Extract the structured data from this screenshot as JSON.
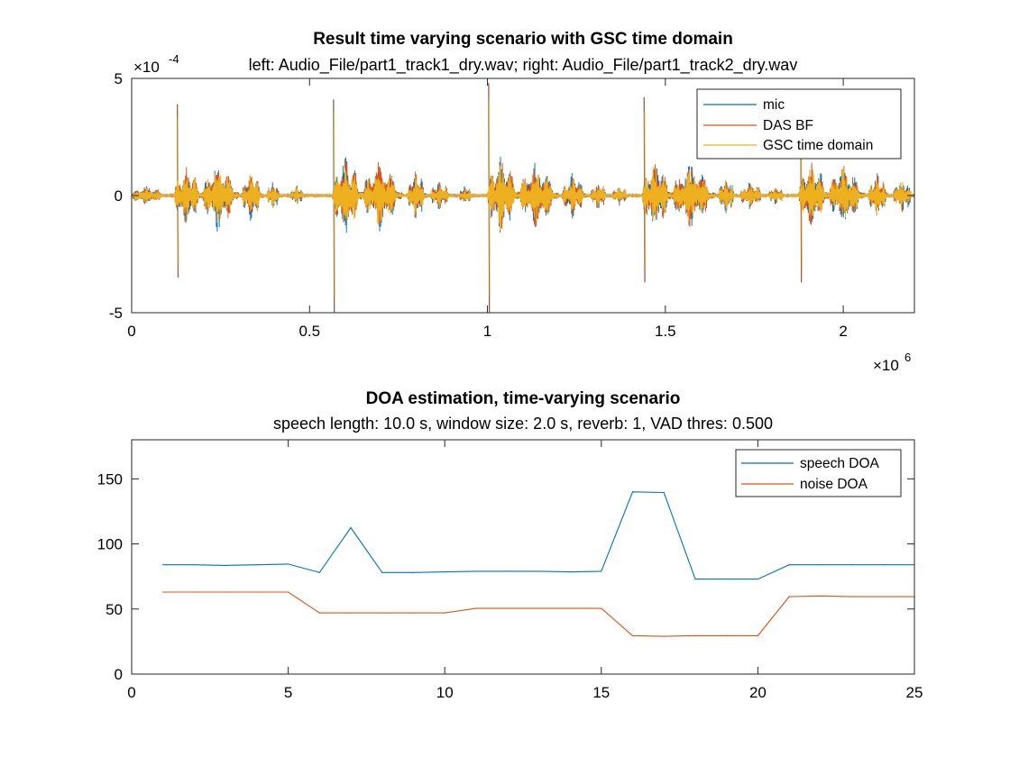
{
  "chart_data": [
    {
      "type": "line",
      "title": "Result time varying scenario with GSC time domain",
      "subtitle": "left: Audio_File/part1_track1_dry.wav; right: Audio_File/part1_track2_dry.wav",
      "xlabel": "",
      "ylabel": "",
      "xlim": [
        0,
        2200000
      ],
      "ylim": [
        -0.0005,
        0.0005
      ],
      "x_ticks": [
        "0",
        "0.5",
        "1",
        "1.5",
        "2"
      ],
      "x_tick_values": [
        0,
        500000,
        1000000,
        1500000,
        2000000
      ],
      "x_exponent": {
        "base": "×10",
        "power": "6"
      },
      "y_ticks": [
        "-5",
        "0",
        "5"
      ],
      "y_tick_values": [
        -0.0005,
        0,
        0.0005
      ],
      "y_exponent": {
        "base": "×10",
        "power": "-4"
      },
      "grid": false,
      "legend_position": "top-right",
      "series": [
        {
          "name": "mic",
          "color": "#0072bd"
        },
        {
          "name": "DAS BF",
          "color": "#d95319"
        },
        {
          "name": "GSC time domain",
          "color": "#edb120"
        }
      ],
      "speech_bursts": [
        {
          "start": 0,
          "end": 100000,
          "level": 4e-05
        },
        {
          "start": 120000,
          "end": 200000,
          "level": 0.00012,
          "peak_x": 128000,
          "peak_hi": 0.00039,
          "peak_lo": -0.00035
        },
        {
          "start": 200000,
          "end": 300000,
          "level": 0.00014
        },
        {
          "start": 310000,
          "end": 370000,
          "level": 0.0001
        },
        {
          "start": 380000,
          "end": 420000,
          "level": 6e-05
        },
        {
          "start": 445000,
          "end": 490000,
          "level": 4e-05
        },
        {
          "start": 565000,
          "end": 650000,
          "level": 0.00016,
          "peak_x": 567000,
          "peak_hi": 0.00041,
          "peak_lo": -0.0005
        },
        {
          "start": 650000,
          "end": 760000,
          "level": 0.00014
        },
        {
          "start": 775000,
          "end": 830000,
          "level": 0.0001
        },
        {
          "start": 840000,
          "end": 900000,
          "level": 6e-05
        },
        {
          "start": 920000,
          "end": 960000,
          "level": 4e-05
        },
        {
          "start": 1000000,
          "end": 1090000,
          "level": 0.00016,
          "peak_x": 1003000,
          "peak_hi": 0.00048,
          "peak_lo": -0.0005
        },
        {
          "start": 1090000,
          "end": 1200000,
          "level": 0.00013
        },
        {
          "start": 1210000,
          "end": 1280000,
          "level": 9e-05
        },
        {
          "start": 1290000,
          "end": 1340000,
          "level": 6e-05
        },
        {
          "start": 1350000,
          "end": 1400000,
          "level": 4e-05
        },
        {
          "start": 1435000,
          "end": 1520000,
          "level": 0.00015,
          "peak_x": 1440000,
          "peak_hi": 0.00042,
          "peak_lo": -0.00037
        },
        {
          "start": 1520000,
          "end": 1640000,
          "level": 0.00013
        },
        {
          "start": 1650000,
          "end": 1700000,
          "level": 8e-05
        },
        {
          "start": 1710000,
          "end": 1780000,
          "level": 6e-05
        },
        {
          "start": 1790000,
          "end": 1840000,
          "level": 4e-05
        },
        {
          "start": 1875000,
          "end": 1960000,
          "level": 0.00014,
          "peak_x": 1880000,
          "peak_hi": 0.00042,
          "peak_lo": -0.00037
        },
        {
          "start": 1960000,
          "end": 2060000,
          "level": 0.00013
        },
        {
          "start": 2070000,
          "end": 2130000,
          "level": 9e-05
        },
        {
          "start": 2140000,
          "end": 2200000,
          "level": 7e-05
        }
      ]
    },
    {
      "type": "line",
      "title": "DOA estimation, time-varying scenario",
      "subtitle": "speech length: 10.0 s, window size: 2.0 s, reverb: 1, VAD thres: 0.500",
      "xlabel": "",
      "ylabel": "",
      "xlim": [
        0,
        25
      ],
      "ylim": [
        0,
        180
      ],
      "x_ticks": [
        "0",
        "5",
        "10",
        "15",
        "20",
        "25"
      ],
      "x_tick_values": [
        0,
        5,
        10,
        15,
        20,
        25
      ],
      "y_ticks": [
        "0",
        "50",
        "100",
        "150"
      ],
      "y_tick_values": [
        0,
        50,
        100,
        150
      ],
      "grid": false,
      "legend_position": "top-right",
      "x": [
        1,
        2,
        3,
        4,
        5,
        6,
        7,
        8,
        9,
        10,
        11,
        12,
        13,
        14,
        15,
        16,
        17,
        18,
        19,
        20,
        21,
        22,
        23,
        24,
        25
      ],
      "series": [
        {
          "name": "speech DOA",
          "color": "#0072bd",
          "values": [
            84,
            84,
            83.5,
            84,
            84.5,
            78,
            112.5,
            78,
            78,
            78.5,
            79,
            79,
            79,
            78.5,
            79,
            140,
            139.5,
            73,
            73,
            73,
            84,
            84,
            84,
            84,
            84
          ]
        },
        {
          "name": "noise DOA",
          "color": "#d95319",
          "values": [
            63,
            63,
            63,
            63,
            63,
            47,
            47,
            47,
            47,
            47,
            50.5,
            50.5,
            50.5,
            50.5,
            50.5,
            29.5,
            29,
            29.5,
            29.5,
            29.5,
            59.5,
            60,
            59.5,
            59.5,
            59.5
          ]
        }
      ]
    }
  ]
}
